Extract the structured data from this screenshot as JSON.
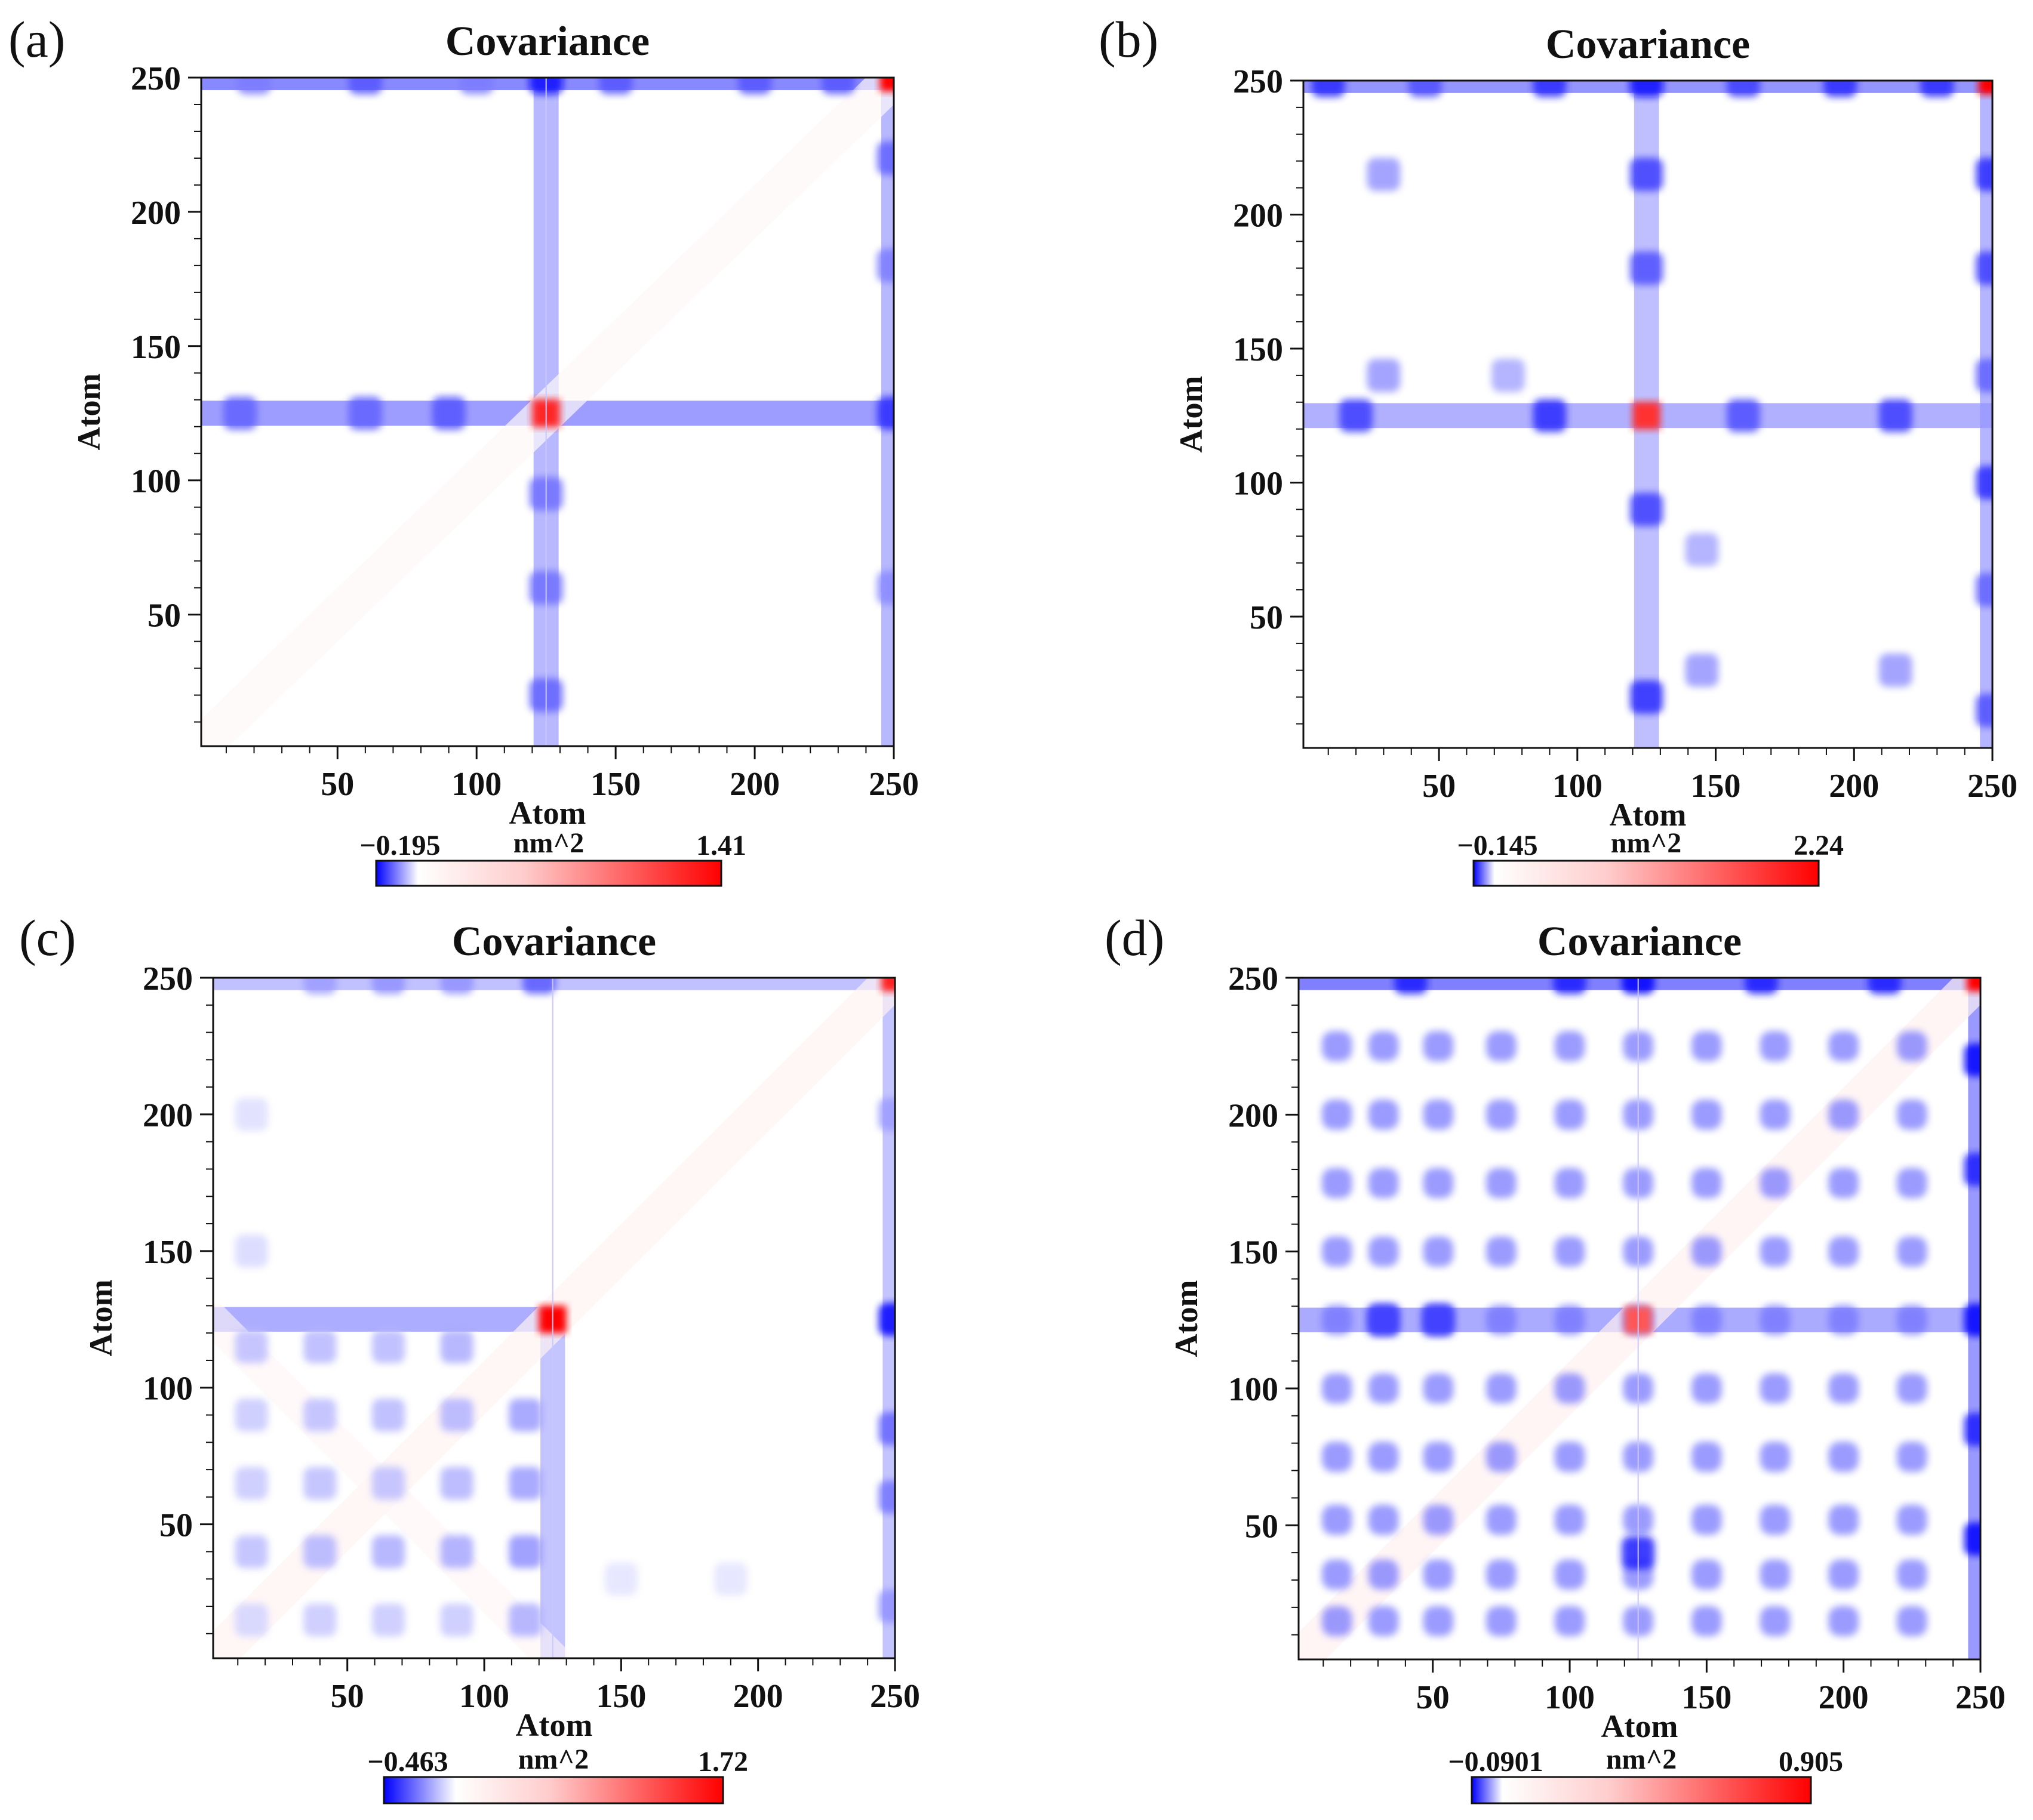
{
  "chart_data": [
    {
      "panel": "(a)",
      "type": "heatmap",
      "title": "Covariance",
      "xlabel": "Atom",
      "ylabel": "Atom",
      "xlim": [
        1,
        250
      ],
      "ylim": [
        1,
        250
      ],
      "x_ticks": [
        50,
        100,
        150,
        200,
        250
      ],
      "y_ticks": [
        50,
        100,
        150,
        200,
        250
      ],
      "colorbar": {
        "min_label": "−0.195",
        "max_label": "1.41",
        "unit": "nm^2",
        "min": -0.195,
        "max": 1.41
      },
      "dividers": [
        125
      ],
      "features": [
        {
          "kind": "hot",
          "x": 250,
          "y": 250,
          "value": 1.41
        },
        {
          "kind": "hot",
          "x": 125,
          "y": 125,
          "value": 1.2
        },
        {
          "kind": "band",
          "orient": "h",
          "at": 250,
          "from": 1,
          "to": 250,
          "value": -0.12
        },
        {
          "kind": "band",
          "orient": "v",
          "at": 250,
          "from": 1,
          "to": 250,
          "value": -0.09
        },
        {
          "kind": "band",
          "orient": "h",
          "at": 125,
          "from": 1,
          "to": 250,
          "value": -0.1
        },
        {
          "kind": "band",
          "orient": "v",
          "at": 125,
          "from": 1,
          "to": 250,
          "value": -0.09
        },
        {
          "kind": "diag",
          "from": 1,
          "to": 250,
          "value": 0.04
        }
      ],
      "blobs": [
        {
          "x": 20,
          "y": 250,
          "v": -0.1
        },
        {
          "x": 60,
          "y": 250,
          "v": -0.13
        },
        {
          "x": 100,
          "y": 250,
          "v": -0.1
        },
        {
          "x": 125,
          "y": 250,
          "v": -0.19
        },
        {
          "x": 150,
          "y": 250,
          "v": -0.13
        },
        {
          "x": 200,
          "y": 250,
          "v": -0.13
        },
        {
          "x": 230,
          "y": 250,
          "v": -0.13
        },
        {
          "x": 250,
          "y": 220,
          "v": -0.12
        },
        {
          "x": 250,
          "y": 180,
          "v": -0.1
        },
        {
          "x": 250,
          "y": 125,
          "v": -0.16
        },
        {
          "x": 250,
          "y": 60,
          "v": -0.09
        },
        {
          "x": 15,
          "y": 125,
          "v": -0.12
        },
        {
          "x": 60,
          "y": 125,
          "v": -0.12
        },
        {
          "x": 90,
          "y": 125,
          "v": -0.13
        },
        {
          "x": 125,
          "y": 95,
          "v": -0.11
        },
        {
          "x": 125,
          "y": 60,
          "v": -0.11
        },
        {
          "x": 125,
          "y": 20,
          "v": -0.12
        }
      ]
    },
    {
      "panel": "(b)",
      "type": "heatmap",
      "title": "Covariance",
      "xlabel": "Atom",
      "ylabel": "Atom",
      "xlim": [
        1,
        250
      ],
      "ylim": [
        1,
        250
      ],
      "x_ticks": [
        50,
        100,
        150,
        200,
        250
      ],
      "y_ticks": [
        50,
        100,
        150,
        200,
        250
      ],
      "colorbar": {
        "min_label": "−0.145",
        "max_label": "2.24",
        "unit": "nm^2",
        "min": -0.145,
        "max": 2.24
      },
      "dividers": [],
      "features": [
        {
          "kind": "hot",
          "x": 250,
          "y": 250,
          "value": 2.24
        },
        {
          "kind": "hot",
          "x": 125,
          "y": 125,
          "value": 1.8
        },
        {
          "kind": "band",
          "orient": "h",
          "at": 250,
          "from": 1,
          "to": 250,
          "value": -0.08
        },
        {
          "kind": "band",
          "orient": "v",
          "at": 250,
          "from": 1,
          "to": 250,
          "value": -0.07
        },
        {
          "kind": "band",
          "orient": "h",
          "at": 125,
          "from": 1,
          "to": 250,
          "value": -0.06
        },
        {
          "kind": "band",
          "orient": "v",
          "at": 125,
          "from": 1,
          "to": 250,
          "value": -0.06
        }
      ],
      "blobs": [
        {
          "x": 10,
          "y": 250,
          "v": -0.12
        },
        {
          "x": 45,
          "y": 250,
          "v": -0.1
        },
        {
          "x": 90,
          "y": 250,
          "v": -0.12
        },
        {
          "x": 125,
          "y": 250,
          "v": -0.14
        },
        {
          "x": 160,
          "y": 250,
          "v": -0.11
        },
        {
          "x": 195,
          "y": 250,
          "v": -0.12
        },
        {
          "x": 230,
          "y": 250,
          "v": -0.12
        },
        {
          "x": 250,
          "y": 215,
          "v": -0.12
        },
        {
          "x": 250,
          "y": 180,
          "v": -0.11
        },
        {
          "x": 250,
          "y": 140,
          "v": -0.09
        },
        {
          "x": 250,
          "y": 100,
          "v": -0.12
        },
        {
          "x": 250,
          "y": 60,
          "v": -0.09
        },
        {
          "x": 250,
          "y": 15,
          "v": -0.1
        },
        {
          "x": 20,
          "y": 125,
          "v": -0.11
        },
        {
          "x": 90,
          "y": 125,
          "v": -0.12
        },
        {
          "x": 160,
          "y": 125,
          "v": -0.1
        },
        {
          "x": 215,
          "y": 125,
          "v": -0.11
        },
        {
          "x": 125,
          "y": 215,
          "v": -0.11
        },
        {
          "x": 125,
          "y": 180,
          "v": -0.1
        },
        {
          "x": 125,
          "y": 90,
          "v": -0.11
        },
        {
          "x": 125,
          "y": 20,
          "v": -0.12
        },
        {
          "x": 30,
          "y": 215,
          "v": -0.06
        },
        {
          "x": 30,
          "y": 140,
          "v": -0.06
        },
        {
          "x": 75,
          "y": 140,
          "v": -0.05
        },
        {
          "x": 145,
          "y": 30,
          "v": -0.06
        },
        {
          "x": 215,
          "y": 30,
          "v": -0.06
        },
        {
          "x": 145,
          "y": 75,
          "v": -0.05
        }
      ]
    },
    {
      "panel": "(c)",
      "type": "heatmap",
      "title": "Covariance",
      "xlabel": "Atom",
      "ylabel": "Atom",
      "xlim": [
        1,
        250
      ],
      "ylim": [
        1,
        250
      ],
      "x_ticks": [
        50,
        100,
        150,
        200,
        250
      ],
      "y_ticks": [
        50,
        100,
        150,
        200,
        250
      ],
      "colorbar": {
        "min_label": "−0.463",
        "max_label": "1.72",
        "unit": "nm^2",
        "min": -0.463,
        "max": 1.72
      },
      "dividers": [
        125
      ],
      "features": [
        {
          "kind": "hot",
          "x": 250,
          "y": 250,
          "value": 1.5
        },
        {
          "kind": "hot",
          "x": 125,
          "y": 125,
          "value": 1.72
        },
        {
          "kind": "band",
          "orient": "h",
          "at": 250,
          "from": 1,
          "to": 250,
          "value": -0.15
        },
        {
          "kind": "band",
          "orient": "v",
          "at": 250,
          "from": 1,
          "to": 250,
          "value": -0.18
        },
        {
          "kind": "band",
          "orient": "h",
          "at": 125,
          "from": 1,
          "to": 125,
          "value": -0.2
        },
        {
          "kind": "band",
          "orient": "v",
          "at": 125,
          "from": 1,
          "to": 125,
          "value": -0.18
        },
        {
          "kind": "diag",
          "from": 1,
          "to": 250,
          "value": 0.08
        },
        {
          "kind": "antidiag",
          "from": 1,
          "to": 125,
          "value": 0.06
        }
      ],
      "blobs": [
        {
          "x": 15,
          "y": 15,
          "v": -0.08
        },
        {
          "x": 40,
          "y": 15,
          "v": -0.1
        },
        {
          "x": 65,
          "y": 15,
          "v": -0.1
        },
        {
          "x": 90,
          "y": 15,
          "v": -0.1
        },
        {
          "x": 115,
          "y": 15,
          "v": -0.15
        },
        {
          "x": 15,
          "y": 40,
          "v": -0.12
        },
        {
          "x": 40,
          "y": 40,
          "v": -0.14
        },
        {
          "x": 65,
          "y": 40,
          "v": -0.15
        },
        {
          "x": 90,
          "y": 40,
          "v": -0.16
        },
        {
          "x": 115,
          "y": 40,
          "v": -0.2
        },
        {
          "x": 15,
          "y": 65,
          "v": -0.1
        },
        {
          "x": 40,
          "y": 65,
          "v": -0.12
        },
        {
          "x": 65,
          "y": 65,
          "v": -0.12
        },
        {
          "x": 90,
          "y": 65,
          "v": -0.14
        },
        {
          "x": 115,
          "y": 65,
          "v": -0.18
        },
        {
          "x": 15,
          "y": 90,
          "v": -0.1
        },
        {
          "x": 40,
          "y": 90,
          "v": -0.12
        },
        {
          "x": 65,
          "y": 90,
          "v": -0.13
        },
        {
          "x": 90,
          "y": 90,
          "v": -0.14
        },
        {
          "x": 115,
          "y": 90,
          "v": -0.18
        },
        {
          "x": 15,
          "y": 115,
          "v": -0.12
        },
        {
          "x": 40,
          "y": 115,
          "v": -0.13
        },
        {
          "x": 65,
          "y": 115,
          "v": -0.13
        },
        {
          "x": 90,
          "y": 115,
          "v": -0.15
        },
        {
          "x": 250,
          "y": 125,
          "v": -0.46
        },
        {
          "x": 250,
          "y": 85,
          "v": -0.28
        },
        {
          "x": 250,
          "y": 60,
          "v": -0.25
        },
        {
          "x": 250,
          "y": 20,
          "v": -0.2
        },
        {
          "x": 250,
          "y": 200,
          "v": -0.18
        },
        {
          "x": 120,
          "y": 250,
          "v": -0.3
        },
        {
          "x": 65,
          "y": 250,
          "v": -0.2
        },
        {
          "x": 90,
          "y": 250,
          "v": -0.2
        },
        {
          "x": 40,
          "y": 250,
          "v": -0.18
        },
        {
          "x": 15,
          "y": 200,
          "v": -0.06
        },
        {
          "x": 15,
          "y": 150,
          "v": -0.07
        },
        {
          "x": 190,
          "y": 30,
          "v": -0.05
        },
        {
          "x": 150,
          "y": 30,
          "v": -0.05
        }
      ]
    },
    {
      "panel": "(d)",
      "type": "heatmap",
      "title": "Covariance",
      "xlabel": "Atom",
      "ylabel": "Atom",
      "xlim": [
        1,
        250
      ],
      "ylim": [
        1,
        250
      ],
      "x_ticks": [
        50,
        100,
        150,
        200,
        250
      ],
      "y_ticks": [
        50,
        100,
        150,
        200,
        250
      ],
      "colorbar": {
        "min_label": "−0.0901",
        "max_label": "0.905",
        "unit": "nm^2",
        "min": -0.0901,
        "max": 0.905
      },
      "dividers": [
        125
      ],
      "features": [
        {
          "kind": "hot",
          "x": 250,
          "y": 250,
          "value": 0.905
        },
        {
          "kind": "hot",
          "x": 125,
          "y": 125,
          "value": 0.6
        },
        {
          "kind": "band",
          "orient": "h",
          "at": 250,
          "from": 1,
          "to": 250,
          "value": -0.06
        },
        {
          "kind": "band",
          "orient": "v",
          "at": 250,
          "from": 1,
          "to": 250,
          "value": -0.06
        },
        {
          "kind": "band",
          "orient": "h",
          "at": 125,
          "from": 1,
          "to": 250,
          "value": -0.04
        },
        {
          "kind": "diag",
          "from": 1,
          "to": 250,
          "value": 0.05
        }
      ],
      "grid_blobs": {
        "centers": [
          15,
          32,
          52,
          75,
          100,
          125,
          150,
          175,
          200,
          225
        ],
        "v": -0.05
      },
      "blobs": [
        {
          "x": 250,
          "y": 220,
          "v": -0.09
        },
        {
          "x": 250,
          "y": 180,
          "v": -0.08
        },
        {
          "x": 250,
          "y": 125,
          "v": -0.09
        },
        {
          "x": 250,
          "y": 85,
          "v": -0.08
        },
        {
          "x": 250,
          "y": 45,
          "v": -0.09
        },
        {
          "x": 42,
          "y": 250,
          "v": -0.08
        },
        {
          "x": 100,
          "y": 250,
          "v": -0.08
        },
        {
          "x": 125,
          "y": 250,
          "v": -0.09
        },
        {
          "x": 170,
          "y": 250,
          "v": -0.08
        },
        {
          "x": 215,
          "y": 250,
          "v": -0.08
        },
        {
          "x": 125,
          "y": 40,
          "v": -0.08
        },
        {
          "x": 32,
          "y": 125,
          "v": -0.07
        },
        {
          "x": 52,
          "y": 125,
          "v": -0.07
        }
      ]
    }
  ]
}
